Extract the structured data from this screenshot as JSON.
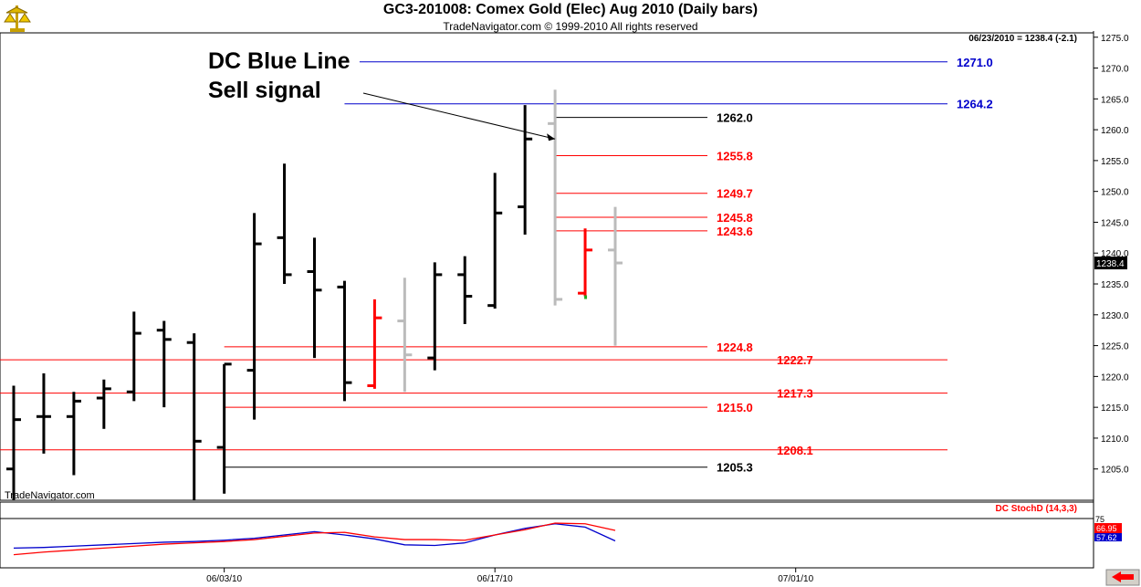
{
  "header": {
    "title": "GC3-201008:  Comex Gold (Elec) Aug 2010  (Daily bars)",
    "subtitle": "TradeNavigator.com © 1999-2010 All rights reserved"
  },
  "chart_data": {
    "type": "ohlc",
    "readout": "06/23/2010 = 1238.4 (-2.1)",
    "watermark": "TradeNavigator.com",
    "price_axis": {
      "ylim": [
        1200.0,
        1276.0
      ],
      "ticks": [
        "1205.0",
        "1210.0",
        "1215.0",
        "1220.0",
        "1225.0",
        "1230.0",
        "1235.0",
        "1240.0",
        "1245.0",
        "1250.0",
        "1255.0",
        "1260.0",
        "1265.0",
        "1270.0",
        "1275.0"
      ],
      "last_price_label": "1238.4"
    },
    "date_axis": {
      "ticks": [
        {
          "label": "06/03/10",
          "bar": 7
        },
        {
          "label": "06/17/10",
          "bar": 16
        },
        {
          "label": "07/01/10",
          "bar": 26
        }
      ]
    },
    "bars": [
      {
        "o": 1205.0,
        "h": 1218.5,
        "l": 1199.0,
        "c": 1213.0,
        "color": "#000000"
      },
      {
        "o": 1213.5,
        "h": 1220.5,
        "l": 1207.5,
        "c": 1213.5,
        "color": "#000000"
      },
      {
        "o": 1213.5,
        "h": 1217.5,
        "l": 1204.0,
        "c": 1216.0,
        "color": "#000000"
      },
      {
        "o": 1216.5,
        "h": 1219.5,
        "l": 1211.5,
        "c": 1218.0,
        "color": "#000000"
      },
      {
        "o": 1217.5,
        "h": 1230.5,
        "l": 1216.0,
        "c": 1227.0,
        "color": "#000000"
      },
      {
        "o": 1227.5,
        "h": 1229.0,
        "l": 1215.0,
        "c": 1226.0,
        "color": "#000000"
      },
      {
        "o": 1225.5,
        "h": 1227.0,
        "l": 1198.0,
        "c": 1209.5,
        "color": "#000000"
      },
      {
        "o": 1208.5,
        "h": 1222.0,
        "l": 1201.0,
        "c": 1222.0,
        "color": "#000000"
      },
      {
        "o": 1221.0,
        "h": 1246.5,
        "l": 1213.0,
        "c": 1241.5,
        "color": "#000000"
      },
      {
        "o": 1242.5,
        "h": 1254.5,
        "l": 1235.0,
        "c": 1236.5,
        "color": "#000000"
      },
      {
        "o": 1237.0,
        "h": 1242.5,
        "l": 1223.0,
        "c": 1234.0,
        "color": "#000000"
      },
      {
        "o": 1234.5,
        "h": 1235.5,
        "l": 1216.0,
        "c": 1219.0,
        "color": "#000000"
      },
      {
        "o": 1218.5,
        "h": 1232.5,
        "l": 1218.0,
        "c": 1229.5,
        "color": "#ff0000"
      },
      {
        "o": 1229.0,
        "h": 1236.0,
        "l": 1217.5,
        "c": 1223.5,
        "color": "#bbbbbb"
      },
      {
        "o": 1223.0,
        "h": 1238.5,
        "l": 1221.0,
        "c": 1236.5,
        "color": "#000000"
      },
      {
        "o": 1236.5,
        "h": 1239.5,
        "l": 1228.5,
        "c": 1233.0,
        "color": "#000000"
      },
      {
        "o": 1231.5,
        "h": 1253.0,
        "l": 1231.0,
        "c": 1246.5,
        "color": "#000000"
      },
      {
        "o": 1247.5,
        "h": 1264.0,
        "l": 1243.0,
        "c": 1258.5,
        "color": "#000000"
      },
      {
        "o": 1261.0,
        "h": 1266.5,
        "l": 1231.5,
        "c": 1232.5,
        "color": "#bbbbbb"
      },
      {
        "o": 1233.5,
        "h": 1244.0,
        "l": 1233.0,
        "c": 1240.5,
        "color": "#ff0000"
      },
      {
        "o": 1240.5,
        "h": 1247.5,
        "l": 1225.0,
        "c": 1238.4,
        "color": "#bbbbbb"
      }
    ],
    "levels": [
      {
        "value": 1271.0,
        "label": "1271.0",
        "color": "#0000cc",
        "line_from_bar": 11.5,
        "label_col": "far"
      },
      {
        "value": 1264.2,
        "label": "1264.2",
        "color": "#0000cc",
        "line_from_bar": 11.0,
        "label_col": "far"
      },
      {
        "value": 1262.0,
        "label": "1262.0",
        "color": "#000000",
        "line_from_bar": 18.0,
        "label_col": "near"
      },
      {
        "value": 1255.8,
        "label": "1255.8",
        "color": "#ff0000",
        "line_from_bar": 18.0,
        "label_col": "near"
      },
      {
        "value": 1249.7,
        "label": "1249.7",
        "color": "#ff0000",
        "line_from_bar": 18.0,
        "label_col": "near"
      },
      {
        "value": 1245.8,
        "label": "1245.8",
        "color": "#ff0000",
        "line_from_bar": 18.0,
        "label_col": "near"
      },
      {
        "value": 1243.6,
        "label": "1243.6",
        "color": "#ff0000",
        "line_from_bar": 18.0,
        "label_col": "near"
      },
      {
        "value": 1224.8,
        "label": "1224.8",
        "color": "#ff0000",
        "line_from_bar": 7.0,
        "label_col": "near"
      },
      {
        "value": 1222.7,
        "label": "1222.7",
        "color": "#ff0000",
        "line_from_bar": -1.0,
        "label_col": "far"
      },
      {
        "value": 1217.3,
        "label": "1217.3",
        "color": "#ff0000",
        "line_from_bar": -1.0,
        "label_col": "far"
      },
      {
        "value": 1215.0,
        "label": "1215.0",
        "color": "#ff0000",
        "line_from_bar": 7.0,
        "label_col": "near"
      },
      {
        "value": 1208.1,
        "label": "1208.1",
        "color": "#ff0000",
        "line_from_bar": -1.0,
        "label_col": "far"
      },
      {
        "value": 1205.3,
        "label": "1205.3",
        "color": "#000000",
        "line_from_bar": 7.0,
        "label_col": "near"
      }
    ],
    "annotation": {
      "line1": "DC Blue Line",
      "line2": "Sell signal",
      "arrow_to_bar": 18,
      "arrow_to_price": 1258.5
    },
    "stochastic": {
      "label": "DC StochD (14,3,3)",
      "ylim": [
        0,
        100
      ],
      "ref_level": 75,
      "value_labels": [
        "66.95",
        "57.62"
      ],
      "k_color": "#ff0000",
      "d_color": "#0000cc",
      "k": [
        20,
        24,
        27,
        30,
        33,
        36,
        38,
        40,
        43,
        48,
        53,
        54,
        47,
        43,
        43,
        42,
        50,
        58,
        68,
        67,
        57
      ],
      "d": [
        30,
        31,
        33,
        35,
        37,
        39,
        40,
        42,
        45,
        50,
        55,
        50,
        44,
        35,
        34,
        38,
        50,
        60,
        67,
        62,
        41
      ]
    }
  }
}
